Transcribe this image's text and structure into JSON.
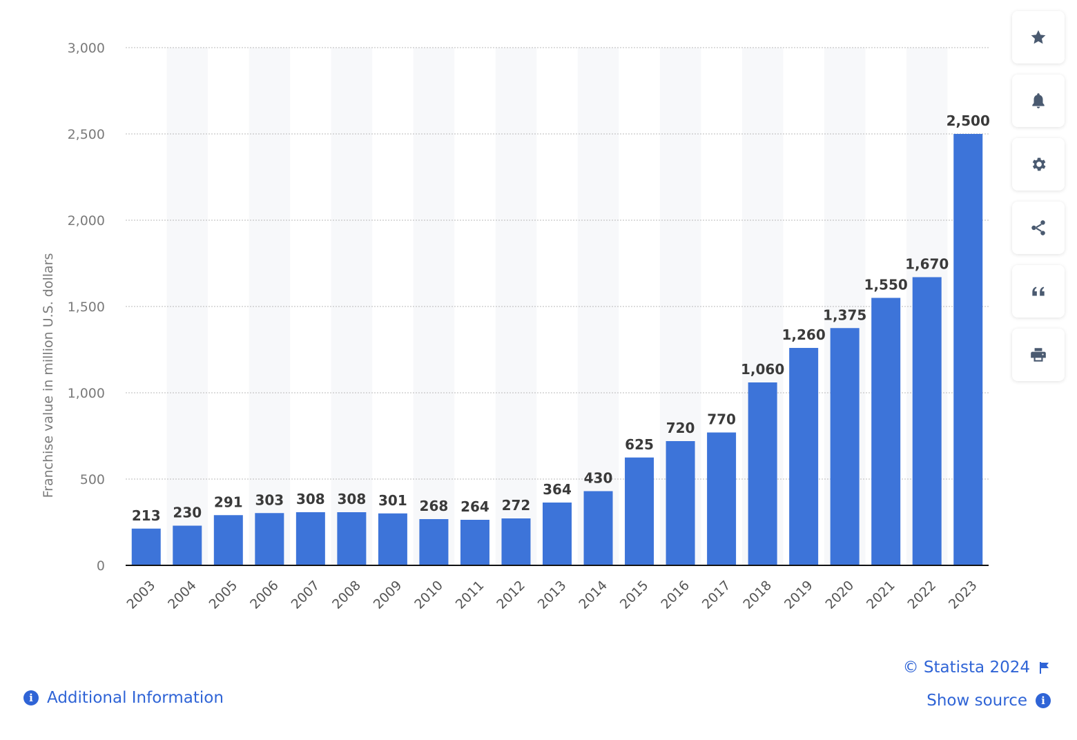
{
  "chart_data": {
    "type": "bar",
    "categories": [
      "2003",
      "2004",
      "2005",
      "2006",
      "2007",
      "2008",
      "2009",
      "2010",
      "2011",
      "2012",
      "2013",
      "2014",
      "2015",
      "2016",
      "2017",
      "2018",
      "2019",
      "2020",
      "2021",
      "2022",
      "2023"
    ],
    "values": [
      213,
      230,
      291,
      303,
      308,
      308,
      301,
      268,
      264,
      272,
      364,
      430,
      625,
      720,
      770,
      1060,
      1260,
      1375,
      1550,
      1670,
      2500
    ],
    "value_labels": [
      "213",
      "230",
      "291",
      "303",
      "308",
      "308",
      "301",
      "268",
      "264",
      "272",
      "364",
      "430",
      "625",
      "720",
      "770",
      "1,060",
      "1,260",
      "1,375",
      "1,550",
      "1,670",
      "2,500"
    ],
    "ylabel": "Franchise value in million U.S. dollars",
    "xlabel": "",
    "ylim": [
      0,
      3000
    ],
    "yticks": [
      0,
      500,
      1000,
      1500,
      2000,
      2500,
      3000
    ],
    "ytick_labels": [
      "0",
      "500",
      "1,000",
      "1,500",
      "2,000",
      "2,500",
      "3,000"
    ],
    "grid": true,
    "bar_color": "#3d74d9",
    "band_color": "#f7f8fa"
  },
  "footer": {
    "credit": "© Statista 2024",
    "show_source": "Show source",
    "additional_info": "Additional Information"
  },
  "sidebar": {
    "icons": [
      "star-icon",
      "bell-icon",
      "gear-icon",
      "share-icon",
      "quote-icon",
      "print-icon"
    ]
  },
  "colors": {
    "accent": "#2f64d6",
    "bar": "#3d74d9",
    "icon": "#4a5a70"
  }
}
